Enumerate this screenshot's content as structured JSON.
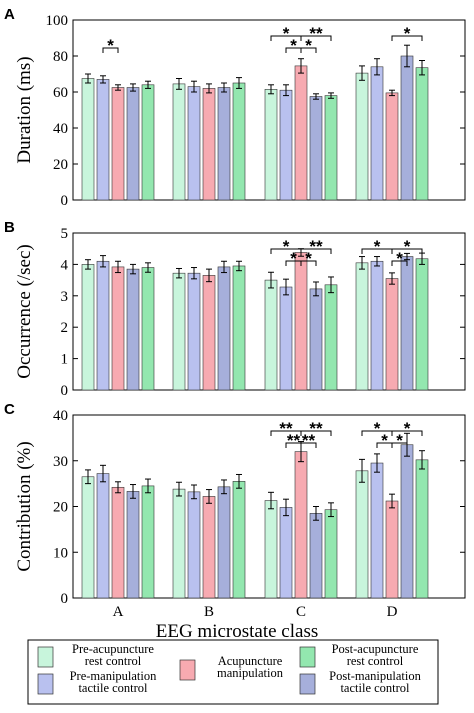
{
  "colors": {
    "pre_rest": "#c8f5dc",
    "pre_tactile": "#b9c1ef",
    "acupuncture": "#f7aab1",
    "post_rest": "#93e7af",
    "post_tactile": "#a6afdb"
  },
  "xlabel": "EEG microstate class",
  "legend": [
    {
      "key": "pre_rest",
      "lines": [
        "Pre-acupuncture",
        "rest control"
      ]
    },
    {
      "key": "pre_tactile",
      "lines": [
        "Pre-manipulation",
        "tactile control"
      ]
    },
    {
      "key": "acupuncture",
      "lines": [
        "Acupuncture",
        "manipulation"
      ]
    },
    {
      "key": "post_rest",
      "lines": [
        "Post-acupuncture",
        "rest control"
      ]
    },
    {
      "key": "post_tactile",
      "lines": [
        "Post-manipulation",
        "tactile control"
      ]
    }
  ],
  "chart_data": [
    {
      "panel": "A",
      "type": "bar",
      "ylabel": "Duration (ms)",
      "ylim": [
        0,
        100
      ],
      "yticks": [
        0,
        20,
        40,
        60,
        80,
        100
      ],
      "categories": [
        "A",
        "B",
        "C",
        "D"
      ],
      "series": [
        {
          "key": "pre_rest",
          "values": [
            67.5,
            64.5,
            61.5,
            70.5
          ],
          "errors": [
            2.5,
            3,
            2.5,
            4
          ]
        },
        {
          "key": "pre_tactile",
          "values": [
            67,
            63,
            61,
            74
          ],
          "errors": [
            2,
            3,
            3,
            4.5
          ]
        },
        {
          "key": "acupuncture",
          "values": [
            62.5,
            62,
            74.5,
            59.5
          ],
          "errors": [
            1.5,
            2.5,
            4,
            1.5
          ]
        },
        {
          "key": "post_tactile",
          "values": [
            62.5,
            62.5,
            57.5,
            80
          ],
          "errors": [
            2,
            2.5,
            1.5,
            6
          ]
        },
        {
          "key": "post_rest",
          "values": [
            64,
            65,
            58,
            73.5
          ],
          "errors": [
            2,
            3,
            1.5,
            4
          ]
        }
      ],
      "significance": [
        {
          "group": 0,
          "from": 1,
          "to": 2,
          "level": 0,
          "label": "*"
        },
        {
          "group": 2,
          "from": 0,
          "to": 2,
          "level": 1,
          "label": "*"
        },
        {
          "group": 2,
          "from": 2,
          "to": 4,
          "level": 1,
          "label": "**"
        },
        {
          "group": 2,
          "from": 1,
          "to": 2,
          "level": 0,
          "label": "*"
        },
        {
          "group": 2,
          "from": 2,
          "to": 3,
          "level": 0,
          "label": "*"
        },
        {
          "group": 3,
          "from": 2,
          "to": 4,
          "level": 1,
          "label": "*"
        }
      ]
    },
    {
      "panel": "B",
      "type": "bar",
      "ylabel": "Occurrence (/sec)",
      "ylim": [
        0,
        5
      ],
      "yticks": [
        0,
        1,
        2,
        3,
        4,
        5
      ],
      "categories": [
        "A",
        "B",
        "C",
        "D"
      ],
      "series": [
        {
          "key": "pre_rest",
          "values": [
            4.0,
            3.72,
            3.5,
            4.05
          ],
          "errors": [
            0.15,
            0.15,
            0.25,
            0.2
          ]
        },
        {
          "key": "pre_tactile",
          "values": [
            4.1,
            3.72,
            3.28,
            4.1
          ],
          "errors": [
            0.18,
            0.18,
            0.25,
            0.15
          ]
        },
        {
          "key": "acupuncture",
          "values": [
            3.92,
            3.65,
            4.38,
            3.55
          ],
          "errors": [
            0.18,
            0.2,
            0.12,
            0.18
          ]
        },
        {
          "key": "post_tactile",
          "values": [
            3.85,
            3.92,
            3.22,
            4.25
          ],
          "errors": [
            0.15,
            0.18,
            0.22,
            0.1
          ]
        },
        {
          "key": "post_rest",
          "values": [
            3.9,
            3.95,
            3.35,
            4.18
          ],
          "errors": [
            0.15,
            0.15,
            0.25,
            0.18
          ]
        }
      ],
      "significance": [
        {
          "group": 2,
          "from": 0,
          "to": 2,
          "level": 1,
          "label": "*"
        },
        {
          "group": 2,
          "from": 2,
          "to": 4,
          "level": 1,
          "label": "**"
        },
        {
          "group": 2,
          "from": 1,
          "to": 2,
          "level": 0,
          "label": "*"
        },
        {
          "group": 2,
          "from": 2,
          "to": 3,
          "level": 0,
          "label": "*"
        },
        {
          "group": 3,
          "from": 0,
          "to": 2,
          "level": 1,
          "label": "*"
        },
        {
          "group": 3,
          "from": 2,
          "to": 4,
          "level": 1,
          "label": "*"
        },
        {
          "group": 3,
          "from": 2,
          "to": 3,
          "level": 0,
          "label": "*"
        }
      ]
    },
    {
      "panel": "C",
      "type": "bar",
      "ylabel": "Contribution (%)",
      "ylim": [
        0,
        40
      ],
      "yticks": [
        0,
        10,
        20,
        30,
        40
      ],
      "categories": [
        "A",
        "B",
        "C",
        "D"
      ],
      "series": [
        {
          "key": "pre_rest",
          "values": [
            26.5,
            23.8,
            21.3,
            27.8
          ],
          "errors": [
            1.5,
            1.5,
            1.8,
            2.5
          ]
        },
        {
          "key": "pre_tactile",
          "values": [
            27.2,
            23.2,
            19.8,
            29.5
          ],
          "errors": [
            1.8,
            1.5,
            1.8,
            2
          ]
        },
        {
          "key": "acupuncture",
          "values": [
            24.2,
            22.2,
            32,
            21.2
          ],
          "errors": [
            1.2,
            1.5,
            2.2,
            1.5
          ]
        },
        {
          "key": "post_tactile",
          "values": [
            23.3,
            24.3,
            18.5,
            33.5
          ],
          "errors": [
            1.5,
            1.5,
            1.5,
            2.5
          ]
        },
        {
          "key": "post_rest",
          "values": [
            24.5,
            25.5,
            19.3,
            30.2
          ],
          "errors": [
            1.5,
            1.5,
            1.5,
            2
          ]
        }
      ],
      "significance": [
        {
          "group": 2,
          "from": 0,
          "to": 2,
          "level": 1,
          "label": "**"
        },
        {
          "group": 2,
          "from": 2,
          "to": 4,
          "level": 1,
          "label": "**"
        },
        {
          "group": 2,
          "from": 1,
          "to": 2,
          "level": 0,
          "label": "**"
        },
        {
          "group": 2,
          "from": 2,
          "to": 3,
          "level": 0,
          "label": "**"
        },
        {
          "group": 3,
          "from": 0,
          "to": 2,
          "level": 1,
          "label": "*"
        },
        {
          "group": 3,
          "from": 2,
          "to": 4,
          "level": 1,
          "label": "*"
        },
        {
          "group": 3,
          "from": 1,
          "to": 2,
          "level": 0,
          "label": "*"
        },
        {
          "group": 3,
          "from": 2,
          "to": 3,
          "level": 0,
          "label": "*"
        }
      ]
    }
  ]
}
